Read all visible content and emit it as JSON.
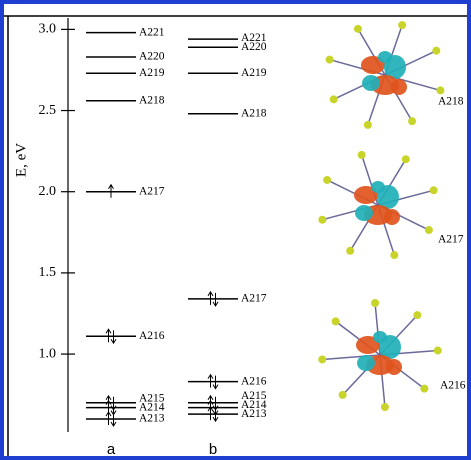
{
  "chart_data": {
    "type": "energy-levels",
    "ylabel": "E, eV",
    "ylim": [
      0.52,
      3.07
    ],
    "yticks": [
      {
        "value": 1,
        "label": "1.0"
      },
      1.5,
      {
        "value": 2,
        "label": "2.0"
      },
      2.5,
      {
        "value": 3,
        "label": "3.0"
      }
    ],
    "color": "#000000",
    "series": [
      {
        "name": "a",
        "labels": [
          "A221",
          "A220",
          "A219",
          "A218",
          "A217",
          "A216",
          "A215",
          "A214",
          "A213"
        ],
        "values": [
          2.98,
          2.83,
          2.73,
          2.56,
          2.0,
          1.11,
          0.7,
          0.67,
          0.6
        ],
        "electrons": [
          0,
          0,
          0,
          0,
          1,
          2,
          2,
          2,
          2
        ]
      },
      {
        "name": "b",
        "labels": [
          "A221",
          "A220",
          "A219",
          "A218",
          "A217",
          "A216",
          "A215",
          "A214",
          "A213"
        ],
        "values": [
          2.94,
          2.89,
          2.73,
          2.48,
          1.34,
          0.83,
          0.7,
          0.67,
          0.63
        ],
        "electrons": [
          0,
          0,
          0,
          0,
          2,
          2,
          2,
          2,
          2
        ]
      }
    ],
    "orbital_labels": [
      "A218",
      "A217",
      "A216"
    ]
  }
}
